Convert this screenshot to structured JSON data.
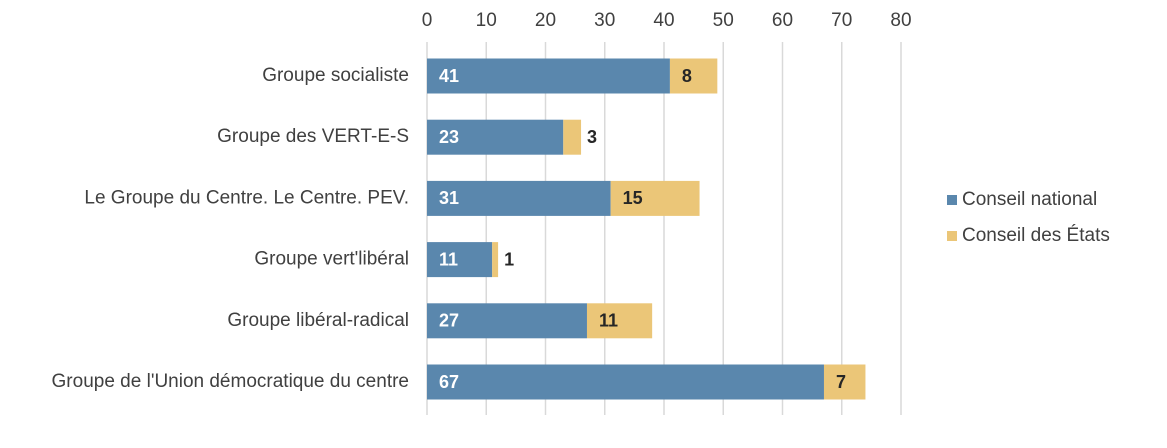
{
  "chart_data": {
    "type": "bar",
    "orientation": "horizontal",
    "stacked": true,
    "title": "",
    "xlabel": "",
    "ylabel": "",
    "xlim": [
      0,
      80
    ],
    "x_ticks": [
      "0",
      "10",
      "20",
      "30",
      "40",
      "50",
      "60",
      "70",
      "80"
    ],
    "x_tick_values": [
      0,
      10,
      20,
      30,
      40,
      50,
      60,
      70,
      80
    ],
    "x_axis_position": "top",
    "grid": true,
    "legend_position": "right",
    "categories": [
      "Groupe socialiste",
      "Groupe des VERT-E-S",
      "Le Groupe du Centre. Le Centre. PEV.",
      "Groupe vert'libéral",
      "Groupe libéral-radical",
      "Groupe de l'Union démocratique du centre"
    ],
    "series": [
      {
        "name": "Conseil national",
        "color": "#5a87ad",
        "label_color": "#ffffff",
        "values": [
          41,
          23,
          31,
          11,
          27,
          67
        ]
      },
      {
        "name": "Conseil des États",
        "color": "#ebc678",
        "label_color": "#262626",
        "values": [
          8,
          3,
          15,
          1,
          11,
          7
        ]
      }
    ]
  }
}
